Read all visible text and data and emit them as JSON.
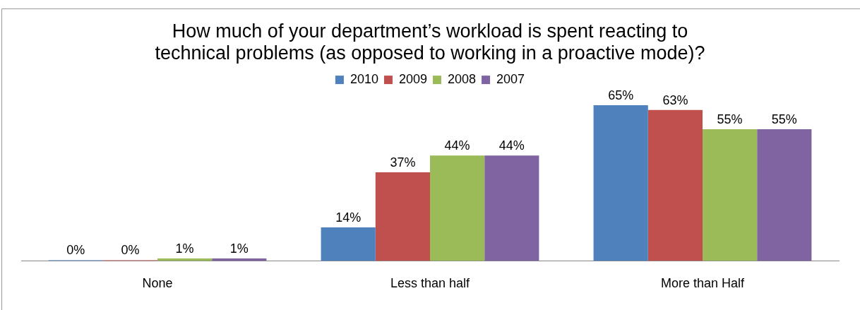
{
  "chart_data": {
    "type": "bar",
    "title": "How much of your department’s workload is spent reacting to\ntechnical problems (as opposed to working in a proactive mode)?",
    "categories": [
      "None",
      "Less than half",
      "More than Half"
    ],
    "series": [
      {
        "name": "2010",
        "color": "#4f81bd",
        "values": [
          0,
          14,
          65
        ],
        "value_labels": [
          "0%",
          "14%",
          "65%"
        ]
      },
      {
        "name": "2009",
        "color": "#c0504d",
        "values": [
          0,
          37,
          63
        ],
        "value_labels": [
          "0%",
          "37%",
          "63%"
        ]
      },
      {
        "name": "2008",
        "color": "#9bbb59",
        "values": [
          1,
          44,
          55
        ],
        "value_labels": [
          "1%",
          "44%",
          "55%"
        ]
      },
      {
        "name": "2007",
        "color": "#8064a2",
        "values": [
          1,
          44,
          55
        ],
        "value_labels": [
          "1%",
          "44%",
          "55%"
        ]
      }
    ],
    "legend": "top",
    "grid": false,
    "tick_labels": "x"
  }
}
